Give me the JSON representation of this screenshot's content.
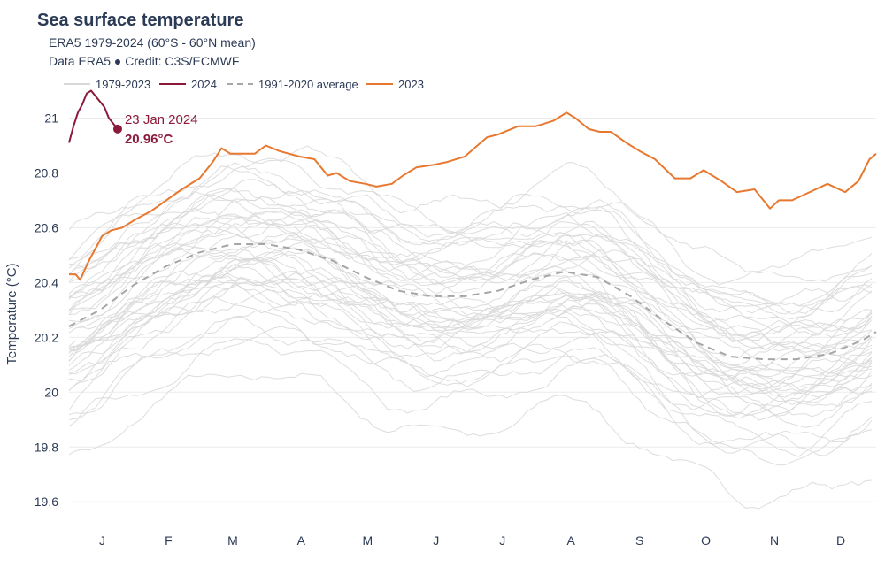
{
  "title": "Sea surface temperature",
  "subtitle_line1": "ERA5 1979-2024 (60°S - 60°N mean)",
  "subtitle_line2": "Data ERA5 ● Credit: C3S/ECMWF",
  "chart_data": {
    "type": "line",
    "ylabel": "Temperature (°C)",
    "xlabel": "",
    "ylim": [
      19.52,
      21.05
    ],
    "y_ticks": [
      19.6,
      19.8,
      20,
      20.2,
      20.4,
      20.6,
      20.8,
      21
    ],
    "y_tick_labels": [
      "19.6",
      "19.8",
      "20",
      "20.2",
      "20.4",
      "20.6",
      "20.8",
      "21"
    ],
    "x_day_range": [
      1,
      366
    ],
    "x_ticks": [
      {
        "day": 16,
        "label": "J"
      },
      {
        "day": 46,
        "label": "F"
      },
      {
        "day": 75,
        "label": "M"
      },
      {
        "day": 106,
        "label": "A"
      },
      {
        "day": 136,
        "label": "M"
      },
      {
        "day": 167,
        "label": "J"
      },
      {
        "day": 197,
        "label": "J"
      },
      {
        "day": 228,
        "label": "A"
      },
      {
        "day": 259,
        "label": "S"
      },
      {
        "day": 289,
        "label": "O"
      },
      {
        "day": 320,
        "label": "N"
      },
      {
        "day": 350,
        "label": "D"
      }
    ],
    "grid": true,
    "legend_position": "top",
    "legend": [
      "1979-2023",
      "2024",
      "1991-2020 average",
      "2023"
    ],
    "colors": {
      "history": "#d9d9d9",
      "y2024": "#8b1a3a",
      "average": "#a6a6a6",
      "y2023": "#e8782f",
      "axis_text": "#2b3a55",
      "grid": "#ebebeb"
    },
    "series": [
      {
        "name": "2023",
        "x": [
          1,
          4,
          6,
          10,
          16,
          20,
          25,
          31,
          38,
          45,
          52,
          60,
          66,
          70,
          74,
          85,
          90,
          96,
          105,
          112,
          118,
          122,
          128,
          135,
          140,
          147,
          152,
          158,
          166,
          172,
          180,
          190,
          195,
          204,
          212,
          220,
          226,
          230,
          236,
          241,
          246,
          253,
          259,
          266,
          275,
          282,
          288,
          296,
          303,
          311,
          318,
          322,
          328,
          336,
          344,
          352,
          358,
          363,
          366
        ],
        "y": [
          20.43,
          20.43,
          20.41,
          20.48,
          20.57,
          20.59,
          20.6,
          20.63,
          20.66,
          20.7,
          20.74,
          20.78,
          20.84,
          20.89,
          20.87,
          20.87,
          20.9,
          20.88,
          20.86,
          20.85,
          20.79,
          20.8,
          20.77,
          20.76,
          20.75,
          20.76,
          20.79,
          20.82,
          20.83,
          20.84,
          20.86,
          20.93,
          20.94,
          20.97,
          20.97,
          20.99,
          21.02,
          21.0,
          20.96,
          20.95,
          20.95,
          20.91,
          20.88,
          20.85,
          20.78,
          20.78,
          20.81,
          20.77,
          20.73,
          20.74,
          20.67,
          20.7,
          20.7,
          20.73,
          20.76,
          20.73,
          20.77,
          20.85,
          20.87
        ]
      },
      {
        "name": "2024",
        "x": [
          1,
          3,
          5,
          7,
          9,
          11,
          13,
          15,
          17,
          19,
          21,
          23
        ],
        "y": [
          20.91,
          20.97,
          21.02,
          21.05,
          21.09,
          21.1,
          21.08,
          21.06,
          21.04,
          21.0,
          20.98,
          20.96
        ]
      },
      {
        "name": "1991-2020 average",
        "x": [
          1,
          15,
          30,
          45,
          60,
          75,
          90,
          105,
          120,
          135,
          150,
          165,
          180,
          195,
          210,
          225,
          240,
          255,
          270,
          285,
          300,
          315,
          330,
          345,
          360,
          366
        ],
        "y": [
          20.24,
          20.3,
          20.39,
          20.46,
          20.51,
          20.54,
          20.54,
          20.52,
          20.48,
          20.42,
          20.37,
          20.35,
          20.35,
          20.37,
          20.41,
          20.44,
          20.42,
          20.35,
          20.26,
          20.18,
          20.13,
          20.12,
          20.12,
          20.14,
          20.19,
          20.22
        ]
      }
    ],
    "annotation": {
      "date": "23 Jan 2024",
      "value": "20.96°C",
      "x": 23,
      "y": 20.96
    }
  }
}
